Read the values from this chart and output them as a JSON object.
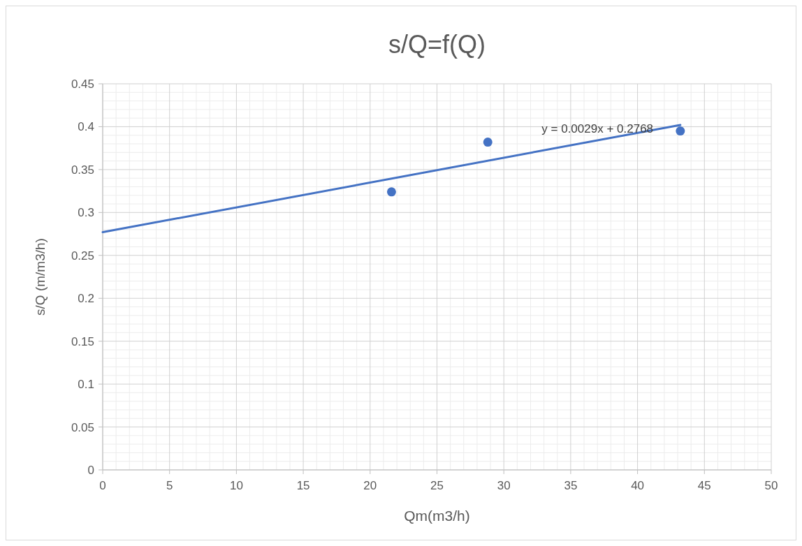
{
  "chart_data": {
    "type": "scatter",
    "title": "s/Q=f(Q)",
    "xlabel": "Qm(m3/h)",
    "ylabel": "s/Q  (m/m3/h)",
    "xlim": [
      0,
      50
    ],
    "xticks": [
      0,
      5,
      10,
      15,
      20,
      25,
      30,
      35,
      40,
      45,
      50
    ],
    "ylim": [
      0,
      0.45
    ],
    "yticks": [
      0,
      0.05,
      0.1,
      0.15,
      0.2,
      0.25,
      0.3,
      0.35,
      0.4,
      0.45
    ],
    "grid": true,
    "series": [
      {
        "color": "#4472c4",
        "marker": "circle",
        "x": [
          21.6,
          28.8,
          43.2
        ],
        "values": [
          0.324,
          0.382,
          0.395
        ]
      },
      {
        "type": "line",
        "color": "#4472c4",
        "x": [
          0,
          43.2
        ],
        "values": [
          0.277,
          0.402
        ],
        "marker": "none",
        "line_style": "solid"
      }
    ],
    "annotations": [
      "y = 0.0029x + 0.2768"
    ]
  }
}
